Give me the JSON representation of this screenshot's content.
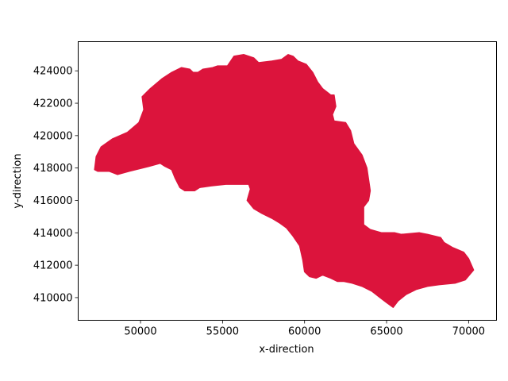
{
  "chart_data": {
    "type": "area",
    "title": "",
    "xlabel": "x-direction",
    "ylabel": "y-direction",
    "xlim": [
      46200,
      71700
    ],
    "ylim": [
      408600,
      425800
    ],
    "xticks": [
      50000,
      55000,
      60000,
      65000,
      70000
    ],
    "yticks": [
      410000,
      412000,
      414000,
      416000,
      418000,
      420000,
      422000,
      424000
    ],
    "xtick_labels": [
      "50000",
      "55000",
      "60000",
      "65000",
      "70000"
    ],
    "ytick_labels": [
      "410000",
      "412000",
      "414000",
      "416000",
      "418000",
      "420000",
      "422000",
      "424000"
    ],
    "grid": false,
    "fill_color": "#dc143c",
    "polygon": [
      [
        47200,
        417900
      ],
      [
        47300,
        418700
      ],
      [
        47600,
        419300
      ],
      [
        48300,
        419800
      ],
      [
        49200,
        420200
      ],
      [
        49900,
        420800
      ],
      [
        50200,
        421600
      ],
      [
        50100,
        422400
      ],
      [
        50600,
        422900
      ],
      [
        51300,
        423500
      ],
      [
        51900,
        423900
      ],
      [
        52500,
        424200
      ],
      [
        53000,
        424100
      ],
      [
        53200,
        423900
      ],
      [
        53500,
        423900
      ],
      [
        53800,
        424100
      ],
      [
        54400,
        424200
      ],
      [
        54700,
        424300
      ],
      [
        55300,
        424300
      ],
      [
        55700,
        424900
      ],
      [
        56300,
        425000
      ],
      [
        56900,
        424800
      ],
      [
        57200,
        424500
      ],
      [
        58000,
        424600
      ],
      [
        58600,
        424700
      ],
      [
        59000,
        425000
      ],
      [
        59300,
        424900
      ],
      [
        59600,
        424600
      ],
      [
        60100,
        424400
      ],
      [
        60500,
        423900
      ],
      [
        60800,
        423300
      ],
      [
        61100,
        422900
      ],
      [
        61600,
        422500
      ],
      [
        61800,
        422500
      ],
      [
        61900,
        421800
      ],
      [
        61700,
        421300
      ],
      [
        61800,
        420900
      ],
      [
        62500,
        420800
      ],
      [
        62800,
        420300
      ],
      [
        63000,
        419500
      ],
      [
        63500,
        418800
      ],
      [
        63800,
        418000
      ],
      [
        63900,
        417300
      ],
      [
        64000,
        416600
      ],
      [
        63900,
        416000
      ],
      [
        63600,
        415600
      ],
      [
        63600,
        414500
      ],
      [
        64000,
        414200
      ],
      [
        64700,
        414000
      ],
      [
        65500,
        414000
      ],
      [
        65900,
        413900
      ],
      [
        67000,
        414000
      ],
      [
        67500,
        413900
      ],
      [
        68300,
        413700
      ],
      [
        68500,
        413400
      ],
      [
        69000,
        413100
      ],
      [
        69700,
        412800
      ],
      [
        70000,
        412400
      ],
      [
        70300,
        411700
      ],
      [
        69800,
        411100
      ],
      [
        69200,
        410900
      ],
      [
        68200,
        410800
      ],
      [
        67500,
        410700
      ],
      [
        66800,
        410500
      ],
      [
        66200,
        410200
      ],
      [
        65700,
        409800
      ],
      [
        65400,
        409400
      ],
      [
        65000,
        409700
      ],
      [
        64600,
        410000
      ],
      [
        64100,
        410400
      ],
      [
        63500,
        410700
      ],
      [
        62900,
        410900
      ],
      [
        62400,
        411000
      ],
      [
        62000,
        411000
      ],
      [
        61600,
        411200
      ],
      [
        61100,
        411400
      ],
      [
        60700,
        411200
      ],
      [
        60300,
        411300
      ],
      [
        60000,
        411600
      ],
      [
        59900,
        412300
      ],
      [
        59700,
        413200
      ],
      [
        59300,
        413800
      ],
      [
        58900,
        414300
      ],
      [
        58500,
        414600
      ],
      [
        58000,
        414900
      ],
      [
        57400,
        415200
      ],
      [
        56900,
        415500
      ],
      [
        56500,
        416000
      ],
      [
        56700,
        416700
      ],
      [
        56600,
        417000
      ],
      [
        55900,
        417000
      ],
      [
        55200,
        417000
      ],
      [
        54300,
        416900
      ],
      [
        53600,
        416800
      ],
      [
        53300,
        416600
      ],
      [
        52700,
        416600
      ],
      [
        52400,
        416800
      ],
      [
        52100,
        417400
      ],
      [
        51900,
        417900
      ],
      [
        51500,
        418100
      ],
      [
        51200,
        418300
      ],
      [
        50500,
        418100
      ],
      [
        49300,
        417800
      ],
      [
        48600,
        417600
      ],
      [
        48100,
        417800
      ],
      [
        47700,
        417800
      ],
      [
        47400,
        417800
      ]
    ]
  }
}
